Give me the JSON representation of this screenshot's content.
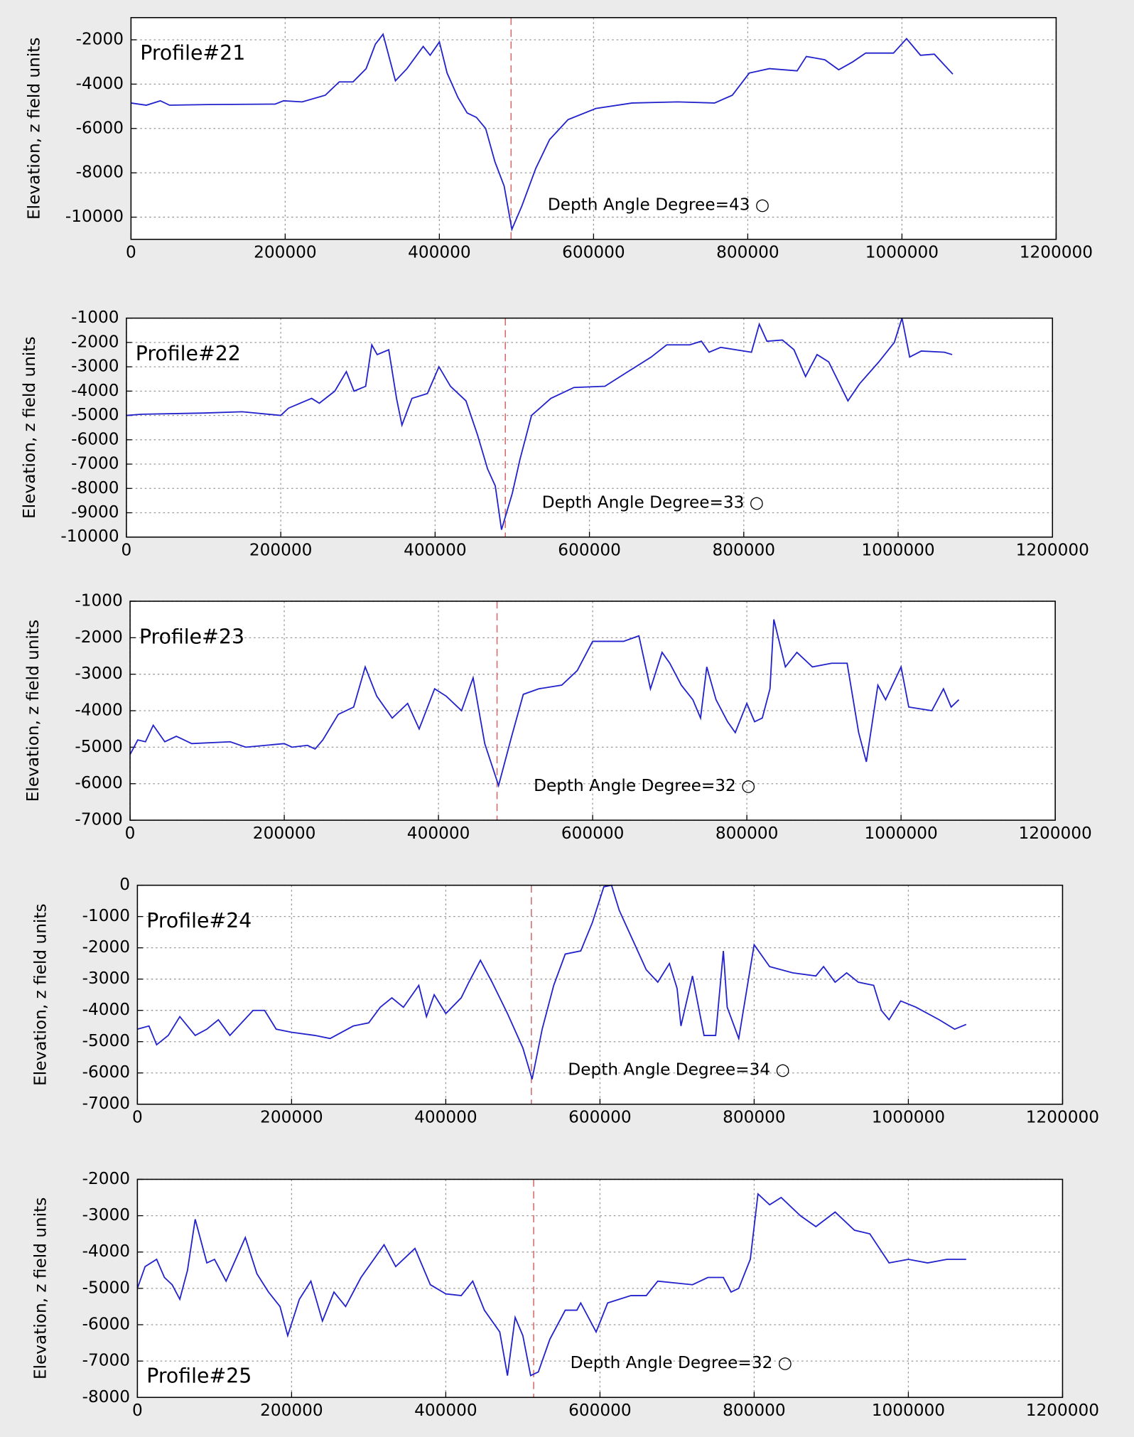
{
  "chart_data": [
    {
      "type": "line",
      "title": "Profile#21",
      "title_position": "upper left",
      "ylabel": "Elevation, z field units",
      "annotation": "Depth Angle Degree=43 ○",
      "vline": 493000,
      "vline_color": "#d46a6a",
      "color": "#2222cc",
      "grid": true,
      "xlim": [
        0,
        1200000
      ],
      "xticks": [
        0,
        200000,
        400000,
        600000,
        800000,
        1000000,
        1200000
      ],
      "ylim": [
        -11000,
        -1000
      ],
      "yticks": [
        -10000,
        -8000,
        -6000,
        -4000,
        -2000
      ],
      "x": [
        0,
        20000,
        38000,
        50000,
        100000,
        187000,
        198000,
        222000,
        252000,
        270000,
        288000,
        305000,
        317000,
        327000,
        343000,
        358000,
        379000,
        388000,
        400000,
        410000,
        424000,
        436000,
        448000,
        460000,
        472000,
        484000,
        494000,
        507000,
        525000,
        543000,
        567000,
        603000,
        650000,
        709000,
        757000,
        780000,
        802000,
        828000,
        864000,
        876000,
        900000,
        918000,
        936000,
        953000,
        989000,
        1006000,
        1024000,
        1042000,
        1066000
      ],
      "values": [
        -4850,
        -4950,
        -4750,
        -4950,
        -4920,
        -4900,
        -4750,
        -4800,
        -4500,
        -3900,
        -3900,
        -3300,
        -2200,
        -1750,
        -3850,
        -3300,
        -2300,
        -2700,
        -2100,
        -3500,
        -4600,
        -5300,
        -5500,
        -6000,
        -7500,
        -8600,
        -10550,
        -9500,
        -7800,
        -6500,
        -5600,
        -5100,
        -4850,
        -4800,
        -4850,
        -4500,
        -3500,
        -3300,
        -3400,
        -2750,
        -2900,
        -3350,
        -3000,
        -2600,
        -2600,
        -1950,
        -2700,
        -2650,
        -3550
      ]
    },
    {
      "type": "line",
      "title": "Profile#22",
      "title_position": "upper left",
      "ylabel": "Elevation, z field units",
      "annotation": "Depth Angle Degree=33 ○",
      "vline": 491000,
      "vline_color": "#d46a6a",
      "color": "#2222cc",
      "grid": true,
      "xlim": [
        0,
        1200000
      ],
      "xticks": [
        0,
        200000,
        400000,
        600000,
        800000,
        1000000,
        1200000
      ],
      "ylim": [
        -10000,
        -1000
      ],
      "yticks": [
        -10000,
        -9000,
        -8000,
        -7000,
        -6000,
        -5000,
        -4000,
        -3000,
        -2000,
        -1000
      ],
      "x": [
        0,
        20000,
        100000,
        150000,
        200000,
        210000,
        240000,
        250000,
        270000,
        285000,
        295000,
        310000,
        318000,
        325000,
        340000,
        350000,
        357000,
        370000,
        390000,
        405000,
        420000,
        440000,
        455000,
        468000,
        478000,
        486000,
        500000,
        510000,
        525000,
        550000,
        580000,
        620000,
        650000,
        680000,
        700000,
        730000,
        745000,
        755000,
        770000,
        810000,
        820000,
        830000,
        850000,
        865000,
        880000,
        895000,
        910000,
        935000,
        950000,
        975000,
        995000,
        1005000,
        1015000,
        1030000,
        1060000,
        1070000
      ],
      "values": [
        -5000,
        -4950,
        -4900,
        -4850,
        -5000,
        -4700,
        -4300,
        -4500,
        -4000,
        -3200,
        -4000,
        -3800,
        -2100,
        -2500,
        -2300,
        -4300,
        -5400,
        -4300,
        -4100,
        -3000,
        -3800,
        -4400,
        -5800,
        -7200,
        -7900,
        -9700,
        -8200,
        -6800,
        -5000,
        -4300,
        -3850,
        -3800,
        -3200,
        -2600,
        -2100,
        -2100,
        -1950,
        -2400,
        -2200,
        -2400,
        -1250,
        -1950,
        -1900,
        -2300,
        -3400,
        -2500,
        -2800,
        -4400,
        -3700,
        -2800,
        -2000,
        -1000,
        -2600,
        -2350,
        -2400,
        -2500
      ]
    },
    {
      "type": "line",
      "title": "Profile#23",
      "title_position": "upper left",
      "ylabel": "Elevation, z field units",
      "annotation": "Depth Angle Degree=32 ○",
      "vline": 476000,
      "vline_color": "#d46a6a",
      "color": "#2222cc",
      "grid": true,
      "xlim": [
        0,
        1200000
      ],
      "xticks": [
        0,
        200000,
        400000,
        600000,
        800000,
        1000000,
        1200000
      ],
      "ylim": [
        -7000,
        -1000
      ],
      "yticks": [
        -7000,
        -6000,
        -5000,
        -4000,
        -3000,
        -2000,
        -1000
      ],
      "x": [
        0,
        10000,
        20000,
        30000,
        45000,
        60000,
        80000,
        130000,
        150000,
        200000,
        210000,
        230000,
        240000,
        250000,
        270000,
        290000,
        305000,
        320000,
        340000,
        360000,
        375000,
        395000,
        410000,
        430000,
        445000,
        460000,
        478000,
        495000,
        510000,
        530000,
        560000,
        580000,
        600000,
        640000,
        660000,
        675000,
        690000,
        700000,
        715000,
        730000,
        740000,
        748000,
        760000,
        775000,
        785000,
        800000,
        810000,
        820000,
        830000,
        835000,
        850000,
        865000,
        885000,
        910000,
        930000,
        945000,
        955000,
        970000,
        980000,
        1000000,
        1010000,
        1040000,
        1055000,
        1065000,
        1075000
      ],
      "values": [
        -5200,
        -4800,
        -4850,
        -4400,
        -4850,
        -4700,
        -4900,
        -4850,
        -5000,
        -4900,
        -5000,
        -4950,
        -5050,
        -4800,
        -4100,
        -3900,
        -2800,
        -3600,
        -4200,
        -3800,
        -4500,
        -3400,
        -3600,
        -4000,
        -3100,
        -4900,
        -6050,
        -4700,
        -3550,
        -3400,
        -3300,
        -2900,
        -2100,
        -2100,
        -1950,
        -3400,
        -2400,
        -2700,
        -3300,
        -3700,
        -4200,
        -2800,
        -3700,
        -4300,
        -4600,
        -3800,
        -4300,
        -4200,
        -3400,
        -1500,
        -2800,
        -2400,
        -2800,
        -2700,
        -2700,
        -4600,
        -5400,
        -3300,
        -3700,
        -2800,
        -3900,
        -4000,
        -3400,
        -3900,
        -3700
      ]
    },
    {
      "type": "line",
      "title": "Profile#24",
      "title_position": "upper left",
      "ylabel": "Elevation, z field units",
      "annotation": "Depth Angle Degree=34 ○",
      "vline": 511000,
      "vline_color": "#d46a6a",
      "color": "#2222cc",
      "grid": true,
      "xlim": [
        0,
        1200000
      ],
      "xticks": [
        0,
        200000,
        400000,
        600000,
        800000,
        1000000,
        1200000
      ],
      "ylim": [
        -7000,
        0
      ],
      "yticks": [
        -7000,
        -6000,
        -5000,
        -4000,
        -3000,
        -2000,
        -1000,
        0
      ],
      "x": [
        0,
        15000,
        25000,
        40000,
        55000,
        75000,
        90000,
        105000,
        120000,
        150000,
        165000,
        180000,
        200000,
        230000,
        250000,
        280000,
        300000,
        315000,
        330000,
        345000,
        365000,
        375000,
        385000,
        400000,
        420000,
        430000,
        445000,
        460000,
        480000,
        500000,
        512000,
        525000,
        540000,
        555000,
        575000,
        590000,
        605000,
        615000,
        625000,
        660000,
        675000,
        690000,
        700000,
        705000,
        720000,
        735000,
        750000,
        760000,
        765000,
        780000,
        800000,
        820000,
        850000,
        880000,
        890000,
        905000,
        920000,
        935000,
        955000,
        965000,
        975000,
        990000,
        1010000,
        1040000,
        1060000,
        1075000
      ],
      "values": [
        -4600,
        -4500,
        -5100,
        -4800,
        -4200,
        -4800,
        -4600,
        -4300,
        -4800,
        -4000,
        -4000,
        -4600,
        -4700,
        -4800,
        -4900,
        -4500,
        -4400,
        -3900,
        -3600,
        -3900,
        -3200,
        -4200,
        -3500,
        -4100,
        -3600,
        -3100,
        -2400,
        -3100,
        -4100,
        -5200,
        -6200,
        -4600,
        -3200,
        -2200,
        -2100,
        -1200,
        -50,
        0,
        -800,
        -2700,
        -3100,
        -2500,
        -3300,
        -4500,
        -2900,
        -4800,
        -4800,
        -2100,
        -3900,
        -4900,
        -1900,
        -2600,
        -2800,
        -2900,
        -2600,
        -3100,
        -2800,
        -3100,
        -3200,
        -4000,
        -4300,
        -3700,
        -3900,
        -4300,
        -4600,
        -4450
      ]
    },
    {
      "type": "line",
      "title": "Profile#25",
      "title_position": "lower left",
      "ylabel": "Elevation, z field units",
      "annotation": "Depth Angle Degree=32 ○",
      "vline": 514000,
      "vline_color": "#d46a6a",
      "color": "#2222cc",
      "grid": true,
      "xlim": [
        0,
        1200000
      ],
      "xticks": [
        0,
        200000,
        400000,
        600000,
        800000,
        1000000,
        1200000
      ],
      "ylim": [
        -8000,
        -2000
      ],
      "yticks": [
        -8000,
        -7000,
        -6000,
        -5000,
        -4000,
        -3000,
        -2000
      ],
      "x": [
        0,
        10000,
        25000,
        35000,
        45000,
        55000,
        65000,
        75000,
        90000,
        100000,
        115000,
        140000,
        155000,
        170000,
        185000,
        195000,
        210000,
        225000,
        240000,
        255000,
        270000,
        290000,
        320000,
        335000,
        360000,
        380000,
        400000,
        420000,
        435000,
        450000,
        470000,
        480000,
        490000,
        500000,
        510000,
        520000,
        535000,
        555000,
        570000,
        575000,
        595000,
        610000,
        640000,
        660000,
        675000,
        720000,
        740000,
        760000,
        770000,
        780000,
        795000,
        805000,
        820000,
        835000,
        860000,
        880000,
        905000,
        930000,
        950000,
        975000,
        1000000,
        1025000,
        1050000,
        1075000
      ],
      "values": [
        -5000,
        -4400,
        -4200,
        -4700,
        -4900,
        -5300,
        -4500,
        -3100,
        -4300,
        -4200,
        -4800,
        -3600,
        -4600,
        -5100,
        -5500,
        -6300,
        -5300,
        -4800,
        -5900,
        -5100,
        -5500,
        -4700,
        -3800,
        -4400,
        -3900,
        -4900,
        -5150,
        -5200,
        -4800,
        -5600,
        -6200,
        -7400,
        -5800,
        -6300,
        -7400,
        -7300,
        -6400,
        -5600,
        -5600,
        -5400,
        -6200,
        -5400,
        -5200,
        -5200,
        -4800,
        -4900,
        -4700,
        -4700,
        -5100,
        -5000,
        -4200,
        -2400,
        -2700,
        -2500,
        -3000,
        -3300,
        -2900,
        -3400,
        -3500,
        -4300,
        -4200,
        -4300,
        -4200,
        -4200
      ]
    }
  ]
}
